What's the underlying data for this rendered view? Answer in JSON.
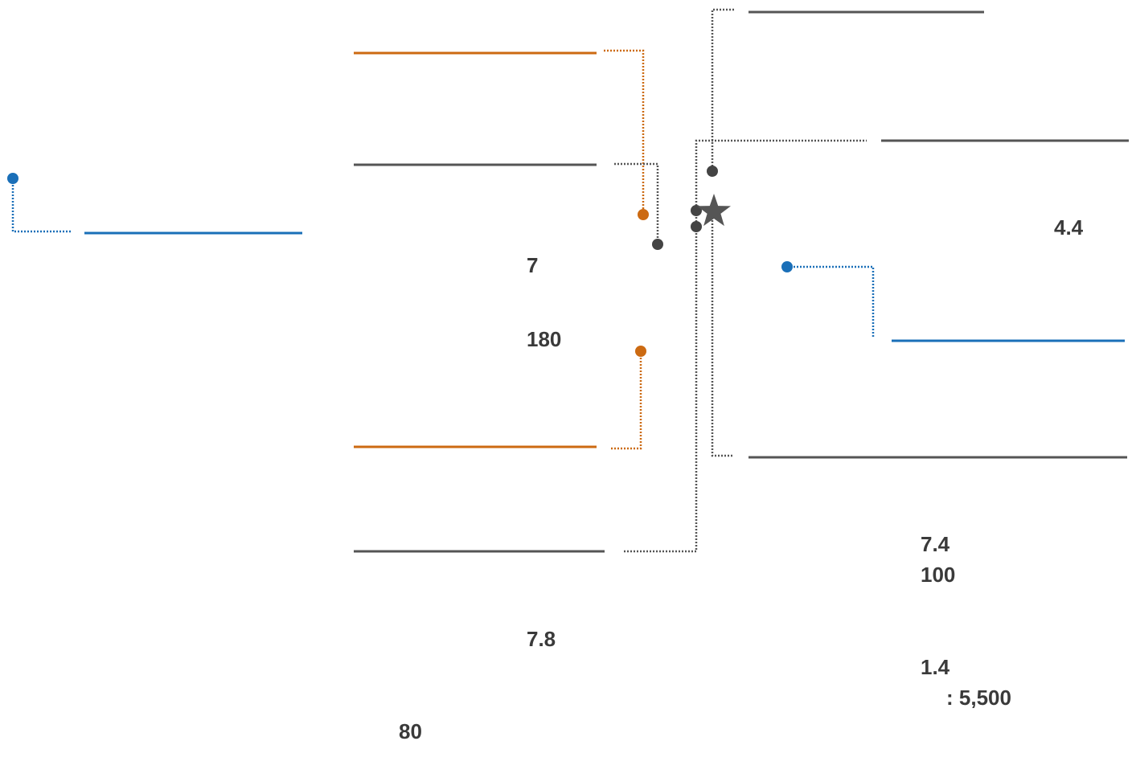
{
  "colors": {
    "gray": "#555555",
    "orange": "#cc6a12",
    "blue": "#1a6fb8",
    "text": "#3a3a3a"
  },
  "labels": {
    "left_upper": "7",
    "left_middle": "180",
    "left_lower": "7.8",
    "bottom": "80",
    "right_top": "4.4",
    "right_lower_1": "7.4",
    "right_lower_2": "100",
    "right_lower_3": "1.4",
    "right_lower_4": ": 5,500"
  },
  "markers": {
    "center_marker_icon": "star-icon"
  }
}
